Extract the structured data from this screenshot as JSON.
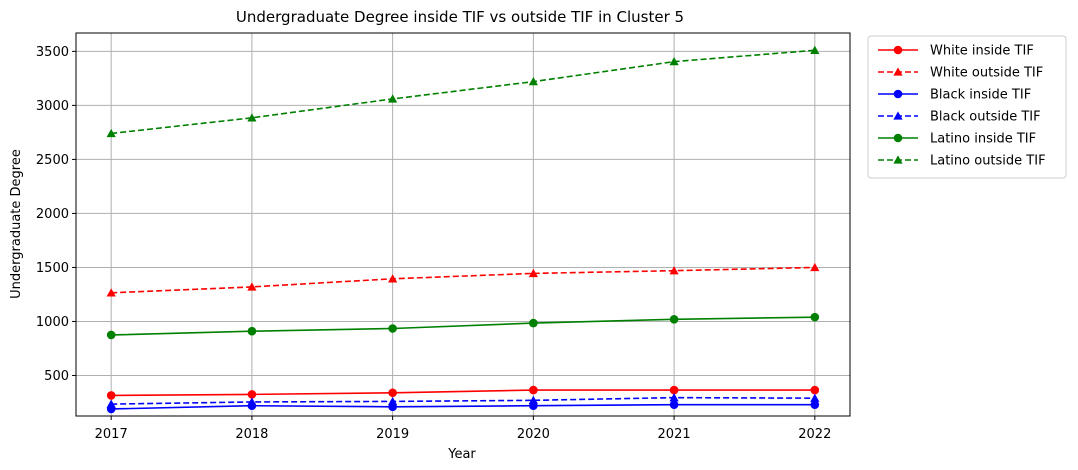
{
  "chart_data": {
    "type": "line",
    "title": "Undergraduate Degree inside TIF vs outside TIF in Cluster 5",
    "xlabel": "Year",
    "ylabel": "Undergraduate Degree",
    "x": [
      2017,
      2018,
      2019,
      2020,
      2021,
      2022
    ],
    "x_tick_labels": [
      "2017",
      "2018",
      "2019",
      "2020",
      "2021",
      "2022"
    ],
    "xlim": [
      2016.75,
      2022.25
    ],
    "ylim": [
      125,
      3670
    ],
    "y_ticks": [
      500,
      1000,
      1500,
      2000,
      2500,
      3000,
      3500
    ],
    "y_tick_labels": [
      "500",
      "1000",
      "1500",
      "2000",
      "2500",
      "3000",
      "3500"
    ],
    "grid": true,
    "legend_position": "outside-top-right",
    "series": [
      {
        "name": "White inside TIF",
        "color": "#ff0000",
        "line_style": "solid",
        "marker": "circle",
        "values": [
          315,
          325,
          340,
          365,
          365,
          365
        ]
      },
      {
        "name": "White outside TIF",
        "color": "#ff0000",
        "line_style": "dashed",
        "marker": "triangle",
        "values": [
          1265,
          1320,
          1395,
          1445,
          1470,
          1500
        ]
      },
      {
        "name": "Black inside TIF",
        "color": "#0000ff",
        "line_style": "solid",
        "marker": "circle",
        "values": [
          190,
          220,
          210,
          220,
          230,
          230
        ]
      },
      {
        "name": "Black outside TIF",
        "color": "#0000ff",
        "line_style": "dashed",
        "marker": "triangle",
        "values": [
          235,
          255,
          260,
          270,
          295,
          290
        ]
      },
      {
        "name": "Latino inside TIF",
        "color": "#008000",
        "line_style": "solid",
        "marker": "circle",
        "values": [
          875,
          910,
          935,
          985,
          1020,
          1040
        ]
      },
      {
        "name": "Latino outside TIF",
        "color": "#008000",
        "line_style": "dashed",
        "marker": "triangle",
        "values": [
          2740,
          2885,
          3060,
          3220,
          3405,
          3510
        ]
      }
    ]
  }
}
